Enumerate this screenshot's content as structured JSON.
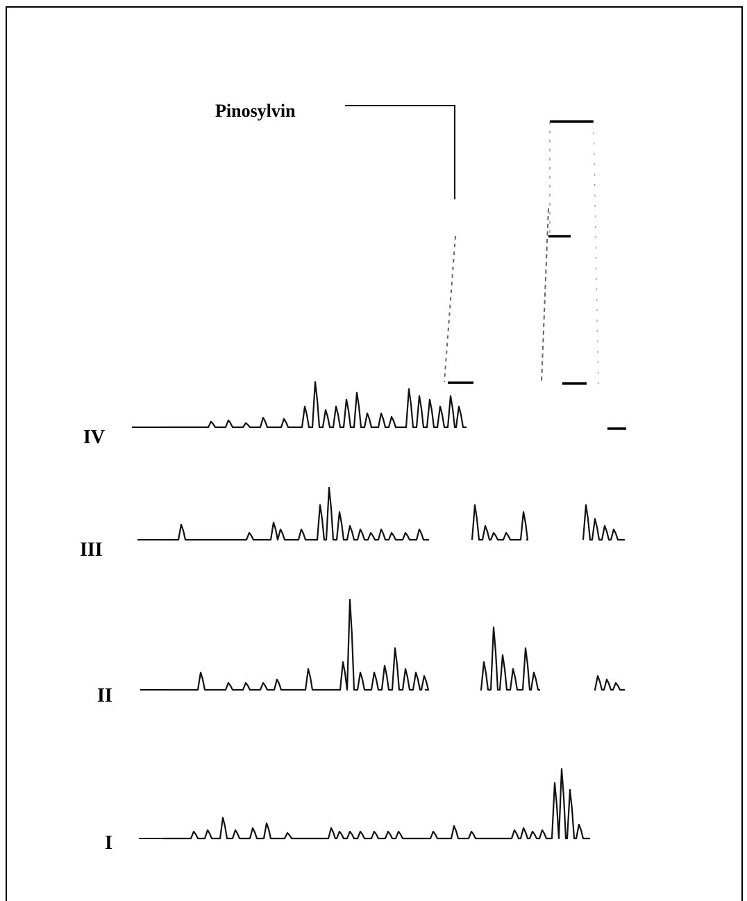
{
  "annotation": {
    "label": "Pinosylvin"
  },
  "traces": [
    {
      "label": "IV"
    },
    {
      "label": "III"
    },
    {
      "label": "II"
    },
    {
      "label": "I"
    }
  ]
}
